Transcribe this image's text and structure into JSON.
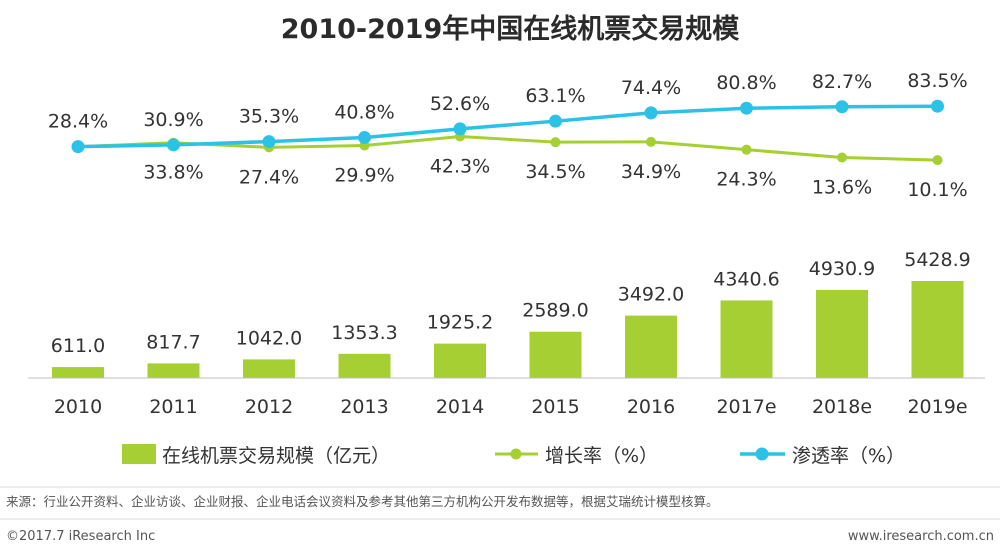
{
  "title": "2010-2019年中国在线机票交易规模",
  "colors": {
    "bar": "#a5cf32",
    "growth": "#a5cf32",
    "penetration": "#2cc1e6",
    "axis": "#bfbfbf"
  },
  "chart_data": {
    "type": "bar+line",
    "title": "2010-2019年中国在线机票交易规模",
    "categories": [
      "2010",
      "2011",
      "2012",
      "2013",
      "2014",
      "2015",
      "2016",
      "2017e",
      "2018e",
      "2019e"
    ],
    "bars": {
      "name": "在线机票交易规模（亿元）",
      "values": [
        611.0,
        817.7,
        1042.0,
        1353.3,
        1925.2,
        2589.0,
        3492.0,
        4340.6,
        4930.9,
        5428.9
      ],
      "labels": [
        "611.0",
        "817.7",
        "1042.0",
        "1353.3",
        "1925.2",
        "2589.0",
        "3492.0",
        "4340.6",
        "4930.9",
        "5428.9"
      ]
    },
    "lines": [
      {
        "name": "增长率（%）",
        "values": [
          null,
          33.8,
          27.4,
          29.9,
          42.3,
          34.5,
          34.9,
          24.3,
          13.6,
          10.1
        ],
        "labels": [
          "",
          "33.8%",
          "27.4%",
          "29.9%",
          "42.3%",
          "34.5%",
          "34.9%",
          "24.3%",
          "13.6%",
          "10.1%"
        ]
      },
      {
        "name": "渗透率（%）",
        "values": [
          28.4,
          30.9,
          35.3,
          40.8,
          52.6,
          63.1,
          74.4,
          80.8,
          82.7,
          83.5
        ],
        "labels": [
          "28.4%",
          "30.9%",
          "35.3%",
          "40.8%",
          "52.6%",
          "63.1%",
          "74.4%",
          "80.8%",
          "82.7%",
          "83.5%"
        ]
      }
    ],
    "legend": [
      "在线机票交易规模（亿元）",
      "增长率（%）",
      "渗透率（%）"
    ],
    "legend_position": "bottom"
  },
  "footer": {
    "source": "来源：行业公开资料、企业访谈、企业财报、企业电话会议资料及参考其他第三方机构公开发布数据等，根据艾瑞统计模型核算。",
    "copyright": "©2017.7 iResearch Inc",
    "website": "www.iresearch.com.cn"
  }
}
